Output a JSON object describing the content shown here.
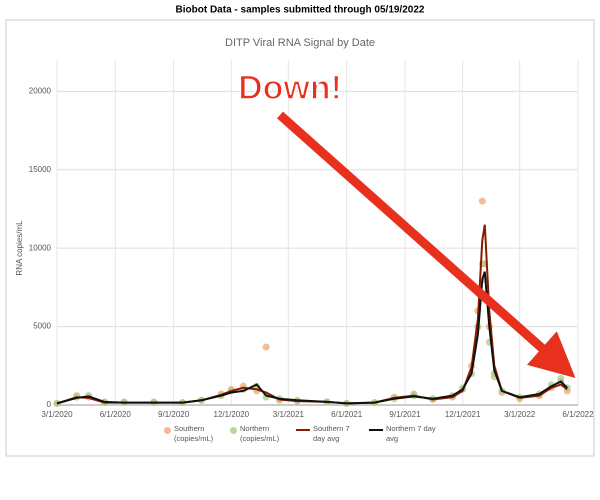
{
  "header": "Biobot Data - samples submitted through 05/19/2022",
  "chart_data": {
    "type": "line",
    "title": "DITP Viral RNA Signal by Date",
    "y_label": "RNA copies/mL",
    "annotation": "Down!",
    "x": [
      "3/1/2020",
      "4/1/2020",
      "4/20/2020",
      "5/15/2020",
      "6/15/2020",
      "8/1/2020",
      "9/15/2020",
      "10/15/2020",
      "11/15/2020",
      "12/1/2020",
      "12/20/2020",
      "1/10/2021",
      "1/25/2021",
      "2/15/2021",
      "3/15/2021",
      "5/1/2021",
      "6/1/2021",
      "7/15/2021",
      "8/15/2021",
      "9/15/2021",
      "10/15/2021",
      "11/15/2021",
      "12/1/2021",
      "12/15/2021",
      "12/25/2021",
      "1/1/2022",
      "1/5/2022",
      "1/12/2022",
      "1/20/2022",
      "2/1/2022",
      "3/1/2022",
      "4/1/2022",
      "4/20/2022",
      "5/5/2022",
      "5/15/2022"
    ],
    "xlim": [
      "3/1/2020",
      "6/1/2022"
    ],
    "xticks": [
      "3/1/2020",
      "6/1/2020",
      "9/1/2020",
      "12/1/2020",
      "3/1/2021",
      "6/1/2021",
      "9/1/2021",
      "12/1/2021",
      "3/1/2022",
      "6/1/2022"
    ],
    "ylim": [
      0,
      22000
    ],
    "yticks": [
      0,
      5000,
      10000,
      15000,
      20000
    ],
    "grid": true,
    "series": [
      {
        "name": "Southern (copies/mL)",
        "style": "points",
        "color": "#f2a577",
        "values": [
          100,
          600,
          500,
          150,
          200,
          150,
          150,
          300,
          700,
          1000,
          1200,
          900,
          3700,
          300,
          250,
          200,
          100,
          150,
          500,
          700,
          350,
          500,
          1000,
          2500,
          6000,
          13000,
          9000,
          5000,
          2000,
          800,
          400,
          600,
          1100,
          1500,
          900
        ]
      },
      {
        "name": "Northern (copies/mL)",
        "style": "points",
        "color": "#a3cf85",
        "values": [
          100,
          500,
          600,
          200,
          150,
          200,
          150,
          300,
          600,
          900,
          1000,
          1200,
          500,
          400,
          300,
          200,
          100,
          150,
          400,
          600,
          400,
          600,
          1100,
          2000,
          5000,
          9000,
          8000,
          4000,
          1800,
          900,
          500,
          700,
          1300,
          1700,
          1100
        ]
      },
      {
        "name": "Southern 7 day avg",
        "style": "line",
        "color": "#8b1a00",
        "values": [
          100,
          500,
          450,
          150,
          150,
          150,
          150,
          300,
          650,
          900,
          1100,
          1000,
          800,
          350,
          250,
          200,
          100,
          150,
          450,
          600,
          350,
          500,
          900,
          2400,
          5500,
          10500,
          11500,
          6000,
          2500,
          900,
          450,
          600,
          1100,
          1300,
          1000
        ]
      },
      {
        "name": "Northern 7 day avg",
        "style": "line",
        "color": "#111111",
        "values": [
          100,
          450,
          550,
          200,
          150,
          150,
          150,
          300,
          600,
          800,
          900,
          1300,
          600,
          400,
          300,
          200,
          100,
          150,
          400,
          550,
          400,
          600,
          1000,
          2000,
          4500,
          8000,
          8500,
          5000,
          2200,
          900,
          500,
          700,
          1200,
          1500,
          1100
        ]
      }
    ]
  }
}
